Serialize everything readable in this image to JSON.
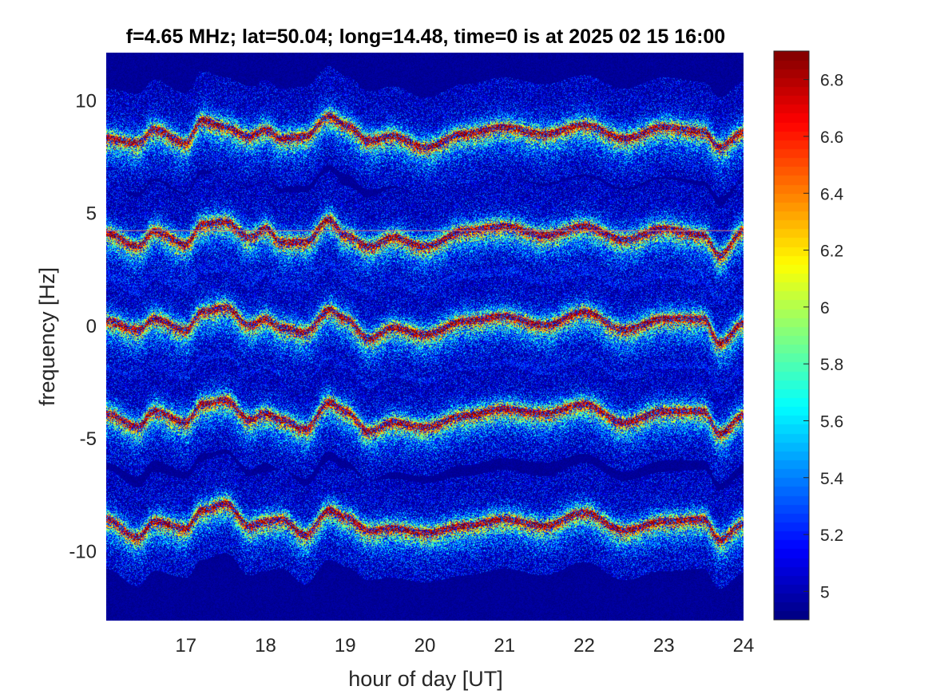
{
  "chart_data": {
    "type": "heatmap",
    "title": "f=4.65 MHz;  lat=50.04; long=14.48, time=0 is at 2025 02 15 16:00",
    "xlabel": "hour of day [UT]",
    "ylabel": "frequency [Hz]",
    "xlim": [
      16,
      24
    ],
    "ylim": [
      -13.1,
      12.1
    ],
    "xticks": [
      17,
      18,
      19,
      20,
      21,
      22,
      23,
      24
    ],
    "xtick_labels": [
      "17",
      "18",
      "19",
      "20",
      "21",
      "22",
      "23",
      "24"
    ],
    "yticks": [
      10,
      5,
      0,
      -5,
      -10
    ],
    "ytick_labels": [
      "10",
      "5",
      "0",
      "-5",
      "-10"
    ],
    "colorbar": {
      "colormap": "jet",
      "clim": [
        4.9,
        6.9
      ],
      "ticks": [
        6.8,
        6.6,
        6.4,
        6.2,
        6.0,
        5.8,
        5.6,
        5.4,
        5.2,
        5.0
      ],
      "tick_labels": [
        "6.8",
        "6.6",
        "6.4",
        "6.2",
        "6",
        "5.8",
        "5.6",
        "5.4",
        "5.2",
        "5"
      ]
    },
    "background_value": 4.95,
    "reference_line": {
      "y": 4.2,
      "color": "#c87878"
    },
    "traces": [
      {
        "offset": 8.55,
        "hours": [
          16,
          16.4,
          16.6,
          17,
          17.2,
          17.5,
          17.8,
          18,
          18.2,
          18.5,
          18.8,
          19,
          19.3,
          19.6,
          20,
          20.5,
          21,
          21.5,
          22,
          22.5,
          23,
          23.5,
          23.7,
          24
        ],
        "freq": [
          8.3,
          8.1,
          8.7,
          8.1,
          9.1,
          8.8,
          8.4,
          8.7,
          8.3,
          8.4,
          9.3,
          8.9,
          8.2,
          8.4,
          7.9,
          8.5,
          8.8,
          8.5,
          8.9,
          8.3,
          8.8,
          8.6,
          7.9,
          8.6
        ]
      },
      {
        "offset": 4.2,
        "hours": [
          16,
          16.4,
          16.6,
          17,
          17.2,
          17.5,
          17.8,
          18,
          18.2,
          18.5,
          18.8,
          19,
          19.3,
          19.6,
          20,
          20.5,
          21,
          21.5,
          22,
          22.5,
          23,
          23.5,
          23.7,
          24
        ],
        "freq": [
          4.1,
          3.5,
          4.2,
          3.6,
          4.5,
          4.6,
          3.9,
          4.3,
          3.7,
          3.7,
          4.7,
          4.0,
          3.5,
          3.9,
          3.5,
          4.2,
          4.4,
          4.0,
          4.4,
          3.8,
          4.3,
          4.0,
          3.1,
          4.2
        ]
      },
      {
        "offset": 0.1,
        "hours": [
          16,
          16.4,
          16.6,
          17,
          17.2,
          17.5,
          17.8,
          18,
          18.2,
          18.5,
          18.8,
          19,
          19.3,
          19.6,
          20,
          20.5,
          21,
          21.5,
          22,
          22.5,
          23,
          23.5,
          23.7,
          24
        ],
        "freq": [
          0.2,
          -0.2,
          0.3,
          -0.2,
          0.6,
          0.8,
          0.0,
          0.3,
          -0.1,
          -0.3,
          0.7,
          0.3,
          -0.6,
          -0.1,
          -0.4,
          0.2,
          0.4,
          0.0,
          0.6,
          -0.2,
          0.3,
          0.3,
          -0.8,
          0.1
        ]
      },
      {
        "offset": -3.9,
        "hours": [
          16,
          16.4,
          16.6,
          17,
          17.2,
          17.5,
          17.8,
          18,
          18.2,
          18.5,
          18.8,
          19,
          19.3,
          19.6,
          20,
          20.5,
          21,
          21.5,
          22,
          22.5,
          23,
          23.5,
          23.7,
          24
        ],
        "freq": [
          -3.9,
          -4.5,
          -3.8,
          -4.3,
          -3.5,
          -3.3,
          -4.2,
          -3.9,
          -4.2,
          -4.6,
          -3.4,
          -3.8,
          -4.7,
          -4.3,
          -4.5,
          -4.0,
          -3.7,
          -3.9,
          -3.5,
          -4.3,
          -3.8,
          -3.8,
          -4.8,
          -4.0
        ]
      },
      {
        "offset": -8.6,
        "hours": [
          16,
          16.4,
          16.6,
          17,
          17.2,
          17.5,
          17.8,
          18,
          18.2,
          18.5,
          18.8,
          19,
          19.3,
          19.6,
          20,
          20.5,
          21,
          21.5,
          22,
          22.5,
          23,
          23.5,
          23.7,
          24
        ],
        "freq": [
          -8.6,
          -9.4,
          -8.7,
          -9.0,
          -8.2,
          -7.9,
          -8.9,
          -8.7,
          -8.6,
          -9.3,
          -8.2,
          -8.5,
          -9.1,
          -9.0,
          -9.2,
          -8.9,
          -8.6,
          -8.9,
          -8.3,
          -9.1,
          -8.7,
          -8.6,
          -9.5,
          -8.8
        ]
      }
    ]
  }
}
